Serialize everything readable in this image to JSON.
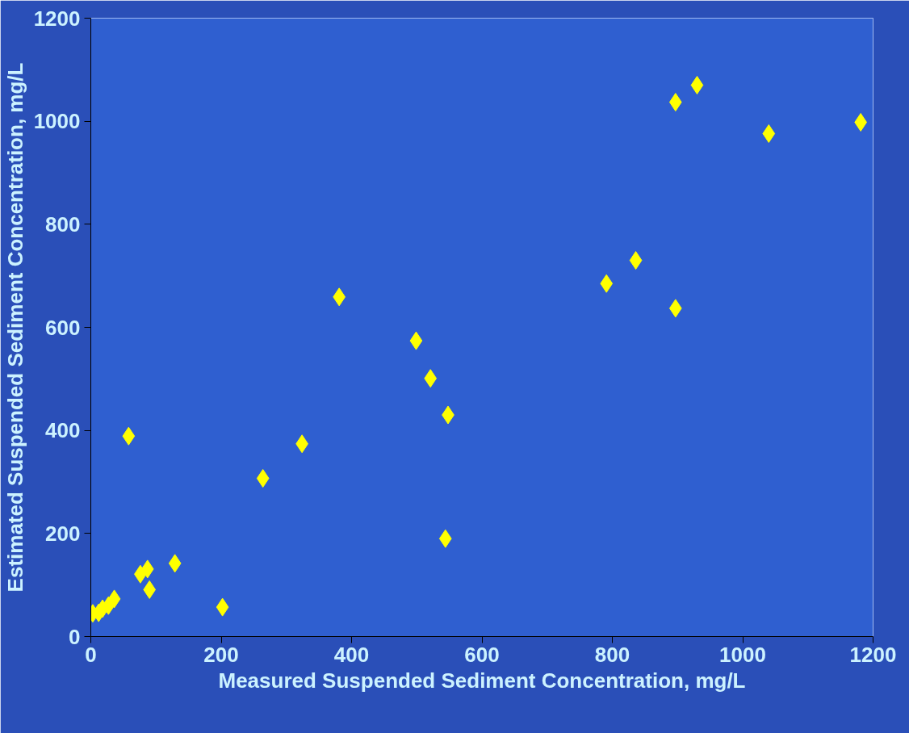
{
  "chart_data": {
    "type": "scatter",
    "xlabel": "Measured Suspended Sediment Concentration, mg/L",
    "ylabel": "Estimated Suspended Sediment Concentration, mg/L",
    "x": [
      3,
      12,
      18,
      27,
      36,
      90,
      76,
      87,
      129,
      202,
      58,
      264,
      324,
      381,
      499,
      521,
      548,
      544,
      791,
      836,
      897,
      897,
      930,
      1040,
      1181
    ],
    "series": [
      {
        "color": "#ffff00",
        "values": [
          45,
          46,
          54,
          60,
          73,
          91,
          121,
          131,
          142,
          57,
          389,
          307,
          374,
          659,
          574,
          501,
          430,
          190,
          685,
          730,
          637,
          1037,
          1070,
          976,
          998
        ]
      }
    ],
    "xlim": [
      0,
      1200
    ],
    "ylim": [
      0,
      1200
    ],
    "xticks": [
      0,
      200,
      400,
      600,
      800,
      1000,
      1200
    ],
    "yticks": [
      0,
      200,
      400,
      600,
      800,
      1000,
      1200
    ],
    "marker": "diamond",
    "grid": false
  }
}
